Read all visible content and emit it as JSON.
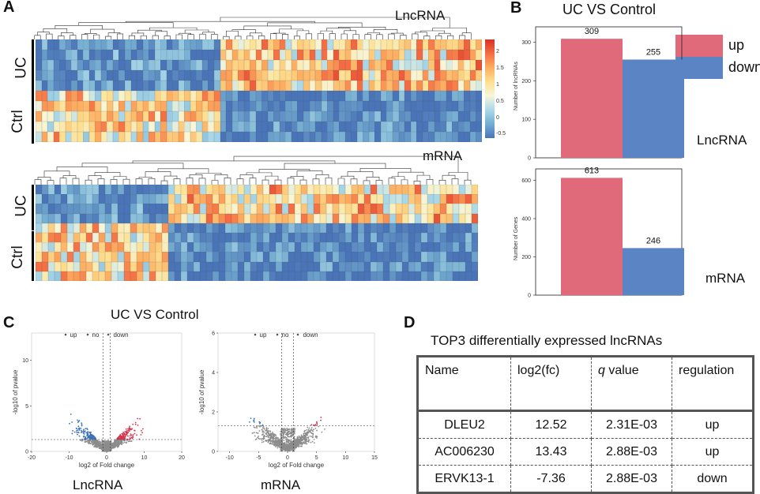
{
  "panels": {
    "a": {
      "letter": "A"
    },
    "b": {
      "letter": "B"
    },
    "c": {
      "letter": "C"
    },
    "d": {
      "letter": "D"
    }
  },
  "heatmap": {
    "lnc_title": "LncRNA",
    "mrna_title": "mRNA",
    "group_uc": "UC",
    "group_ctrl": "Ctrl",
    "colorbar_ticks": [
      "2",
      "1.5",
      "1",
      "0.5",
      "0",
      "-0.5"
    ],
    "colors": {
      "low": "#4a74b8",
      "mid": "#f7f6d8",
      "high": "#d73027"
    }
  },
  "bar": {
    "title": "UC VS Control",
    "legend_up": "up",
    "legend_down": "down",
    "up_color": "#e06a7a",
    "down_color": "#5b84c4",
    "lnc_label": "LncRNA",
    "mrna_label": "mRNA",
    "lnc_ylabel": "Number of lncRNAs",
    "mrna_ylabel": "Number of Genes",
    "lnc_up_text": "309",
    "lnc_down_text": "255",
    "mrna_up_text": "613",
    "mrna_down_text": "246",
    "lnc_yticks": [
      "300",
      "200",
      "100",
      "0"
    ],
    "mrna_yticks": [
      "600",
      "400",
      "200",
      "0"
    ]
  },
  "chart_data": [
    {
      "type": "bar",
      "title": "UC VS Control",
      "ylabel": "Number of lncRNAs",
      "categories": [
        "up",
        "down"
      ],
      "values": [
        309,
        255
      ],
      "ylim": [
        0,
        340
      ]
    },
    {
      "type": "bar",
      "title": "UC VS Control",
      "ylabel": "Number of Genes",
      "categories": [
        "up",
        "down"
      ],
      "values": [
        613,
        246
      ],
      "ylim": [
        0,
        660
      ]
    },
    {
      "type": "scatter",
      "title": "UC VS Control",
      "xlabel": "log2 of Fold change",
      "ylabel": "-log10 of pvalue",
      "legend": [
        "up",
        "no",
        "down"
      ],
      "xlim": [
        -20,
        20
      ],
      "ylim": [
        0,
        13
      ],
      "xticks": [
        "-20",
        "-10",
        "0",
        "10",
        "20"
      ],
      "yticks": [
        "0",
        "5",
        "10"
      ],
      "label": "LncRNA"
    },
    {
      "type": "scatter",
      "title": "UC VS Control",
      "xlabel": "log2 of Fold change",
      "ylabel": "-log10 of pvalue",
      "legend": [
        "up",
        "no",
        "down"
      ],
      "xlim": [
        -12,
        15
      ],
      "ylim": [
        0,
        6
      ],
      "xticks": [
        "-10",
        "-5",
        "0",
        "5",
        "10",
        "15"
      ],
      "yticks": [
        "0",
        "2",
        "4",
        "6"
      ],
      "label": "mRNA"
    }
  ],
  "volcano": {
    "title": "UC VS Control",
    "legend_up": "up",
    "legend_no": "no",
    "legend_down": "down",
    "xlabel": "log2 of Fold change",
    "ylabel": "-log10 of pvalue",
    "lnc_label": "LncRNA",
    "mrna_label": "mRNA",
    "lnc_xticks": [
      "-20",
      "-10",
      "0",
      "10",
      "20"
    ],
    "lnc_yticks": [
      "10",
      "5",
      "0"
    ],
    "mrna_xticks": [
      "-10",
      "-5",
      "0",
      "5",
      "10",
      "15"
    ],
    "mrna_yticks": [
      "6",
      "4",
      "2",
      "0"
    ],
    "colors": {
      "up": "#d6334a",
      "no": "#8c8c8c",
      "down": "#3b6fb6"
    }
  },
  "table": {
    "title": "TOP3 differentially expressed lncRNAs",
    "headers": {
      "name": "Name",
      "log2fc": "log2(fc)",
      "q_italic": "q",
      "q_rest": " value",
      "regulation": "regulation"
    },
    "rows": [
      {
        "name": "DLEU2",
        "log2fc": "12.52",
        "q": "2.31E-03",
        "reg": "up"
      },
      {
        "name": "AC006230",
        "log2fc": "13.43",
        "q": "2.88E-03",
        "reg": "up"
      },
      {
        "name": "ERVK13-1",
        "log2fc": "-7.36",
        "q": "2.88E-03",
        "reg": "down"
      }
    ]
  }
}
